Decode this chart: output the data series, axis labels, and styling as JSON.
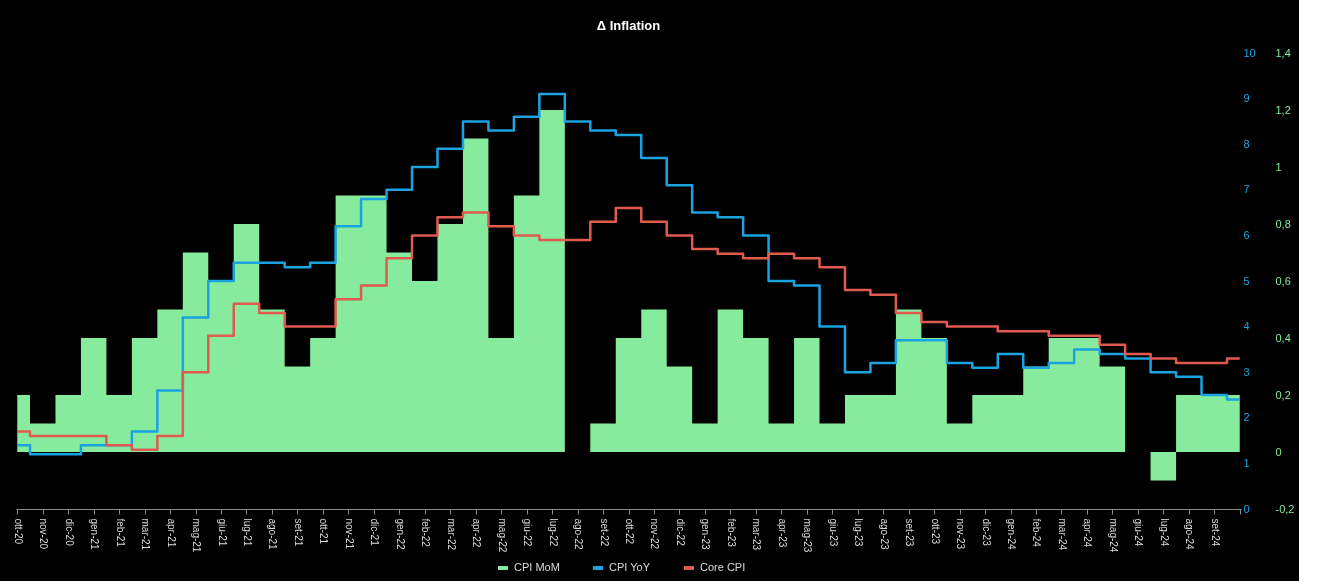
{
  "chart_data": {
    "type": "step",
    "title": "Δ Inflation",
    "categories": [
      "ott-20",
      "nov-20",
      "dic-20",
      "gen-21",
      "feb-21",
      "mar-21",
      "apr-21",
      "mag-21",
      "giu-21",
      "lug-21",
      "ago-21",
      "set-21",
      "ott-21",
      "nov-21",
      "dic-21",
      "gen-22",
      "feb-22",
      "mar-22",
      "apr-22",
      "mag-22",
      "giu-22",
      "lug-22",
      "ago-22",
      "set-22",
      "ott-22",
      "nov-22",
      "dic-22",
      "gen-23",
      "feb-23",
      "mar-23",
      "apr-23",
      "mag-23",
      "giu-23",
      "lug-23",
      "ago-23",
      "set-23",
      "ott-23",
      "nov-23",
      "dic-23",
      "gen-24",
      "feb-24",
      "mar-24",
      "apr-24",
      "mag-24",
      "giu-24",
      "lug-24",
      "ago-24",
      "set-24",
      null
    ],
    "series": [
      {
        "name": "CPI MoM",
        "type": "area",
        "axis": "y2",
        "color": "#86eb9d",
        "values": [
          0.2,
          0.1,
          0.2,
          0.4,
          0.2,
          0.4,
          0.5,
          0.7,
          0.6,
          0.8,
          0.5,
          0.3,
          0.4,
          0.9,
          0.9,
          0.7,
          0.6,
          0.8,
          1.1,
          0.4,
          0.9,
          1.2,
          0,
          0.1,
          0.4,
          0.5,
          0.3,
          0.1,
          0.5,
          0.4,
          0.1,
          0.4,
          0.1,
          0.2,
          0.2,
          0.5,
          0.4,
          0.1,
          0.2,
          0.2,
          0.3,
          0.4,
          0.4,
          0.3,
          0,
          -0.1,
          0.2,
          0.2,
          0.2
        ]
      },
      {
        "name": "CPI YoY",
        "type": "step",
        "axis": "y",
        "color": "#1aa3e0",
        "values": [
          1.4,
          1.2,
          1.2,
          1.4,
          1.4,
          1.7,
          2.6,
          4.2,
          5.0,
          5.4,
          5.4,
          5.3,
          5.4,
          6.2,
          6.8,
          7.0,
          7.5,
          7.9,
          8.5,
          8.3,
          8.6,
          9.1,
          8.5,
          8.3,
          8.2,
          7.7,
          7.1,
          6.5,
          6.4,
          6.0,
          5.0,
          4.9,
          4.0,
          3.0,
          3.2,
          3.7,
          3.7,
          3.2,
          3.1,
          3.4,
          3.1,
          3.2,
          3.5,
          3.4,
          3.3,
          3.0,
          2.9,
          2.5,
          2.4
        ]
      },
      {
        "name": "Core CPI",
        "type": "step",
        "axis": "y",
        "color": "#e05a50",
        "values": [
          1.7,
          1.6,
          1.6,
          1.6,
          1.4,
          1.3,
          1.6,
          3.0,
          3.8,
          4.5,
          4.3,
          4.0,
          4.0,
          4.6,
          4.9,
          5.5,
          6.0,
          6.4,
          6.5,
          6.2,
          6.0,
          5.9,
          5.9,
          6.3,
          6.6,
          6.3,
          6.0,
          5.7,
          5.6,
          5.5,
          5.6,
          5.5,
          5.3,
          4.8,
          4.7,
          4.3,
          4.1,
          4.0,
          4.0,
          3.9,
          3.9,
          3.8,
          3.8,
          3.6,
          3.4,
          3.3,
          3.2,
          3.2,
          3.3
        ]
      }
    ],
    "ylim": [
      0,
      10
    ],
    "yticks": [
      0,
      1,
      2,
      3,
      4,
      5,
      6,
      7,
      8,
      9,
      10
    ],
    "y2lim": [
      -0.2,
      1.4
    ],
    "y2ticks": [
      {
        "value": -0.2,
        "label": "-0,2"
      },
      0,
      {
        "value": 0.2,
        "label": "0,2"
      },
      {
        "value": 0.4,
        "label": "0,4"
      },
      {
        "value": 0.6,
        "label": "0,6"
      },
      {
        "value": 0.8,
        "label": "0,8"
      },
      1,
      {
        "value": 1.2,
        "label": "1,2"
      },
      {
        "value": 1.4,
        "label": "1,4"
      }
    ],
    "legend": "bottom",
    "grid": false
  }
}
